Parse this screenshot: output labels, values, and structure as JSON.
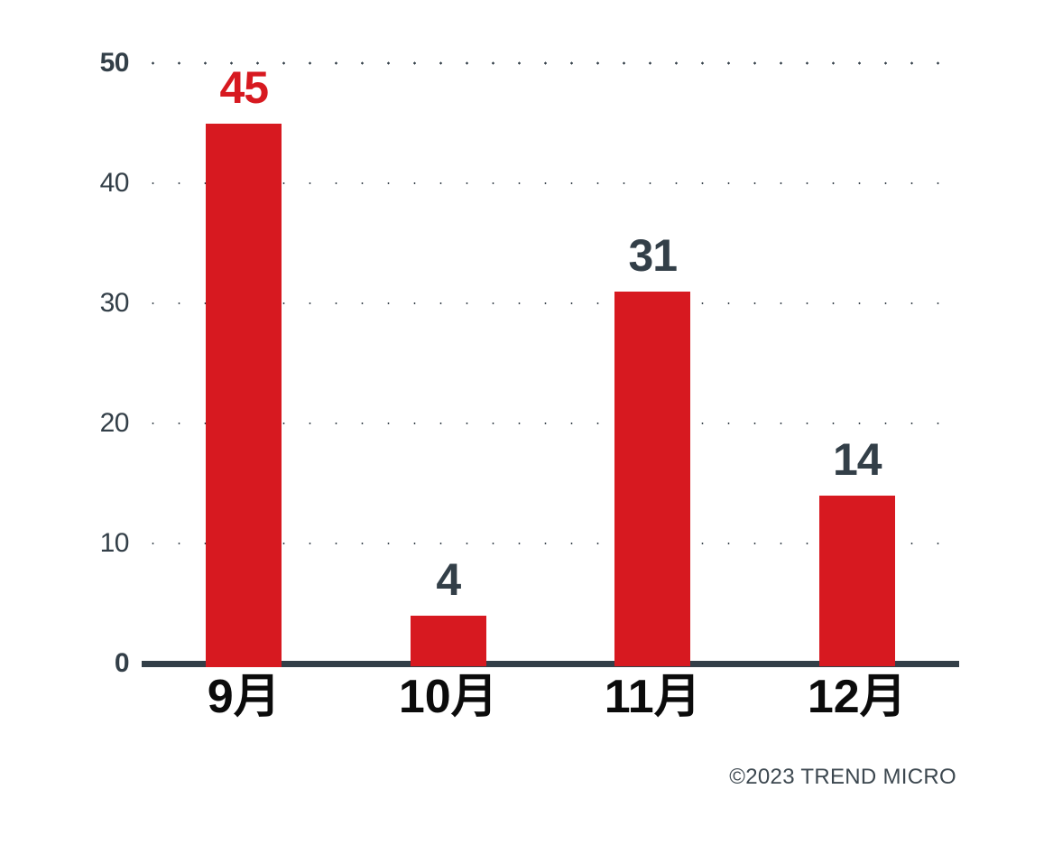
{
  "chart_data": {
    "type": "bar",
    "categories": [
      "9月",
      "10月",
      "11月",
      "12月"
    ],
    "values": [
      45,
      4,
      31,
      14
    ],
    "value_labels": [
      "45",
      "4",
      "31",
      "14"
    ],
    "title": "",
    "xlabel": "",
    "ylabel": "",
    "ylim": [
      0,
      50
    ],
    "yticks": [
      0,
      10,
      20,
      30,
      40,
      50
    ],
    "ytick_labels": [
      "0",
      "10",
      "20",
      "30",
      "40",
      "50"
    ],
    "bold_yticks": [
      0,
      50
    ],
    "grid": "horizontal dotted",
    "legend": "none",
    "bar_color": "#D71920",
    "highlight_value_color": "#D71920",
    "highlighted_value_index": 0,
    "value_label_color": "#333F48",
    "axis_text_color": "#333F48",
    "month_label_color": "#0B0B0B",
    "axis_line_color": "#333F48",
    "footer": "©2023 TREND MICRO",
    "footer_color": "#3C474F"
  }
}
